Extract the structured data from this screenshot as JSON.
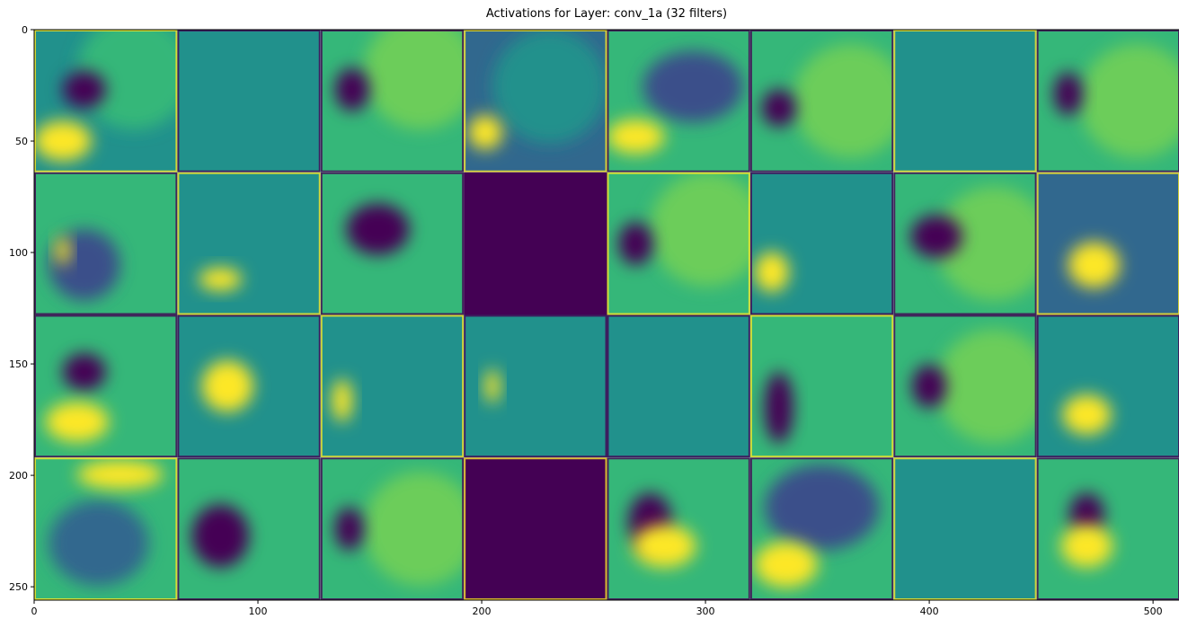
{
  "chart_data": {
    "type": "image",
    "title": "Activations for Layer: conv_1a (32 filters)",
    "xlim": [
      0,
      512
    ],
    "ylim": [
      256,
      0
    ],
    "xticks": [
      0,
      100,
      200,
      300,
      400,
      500
    ],
    "yticks": [
      0,
      50,
      100,
      150,
      200,
      250
    ]
  }
}
